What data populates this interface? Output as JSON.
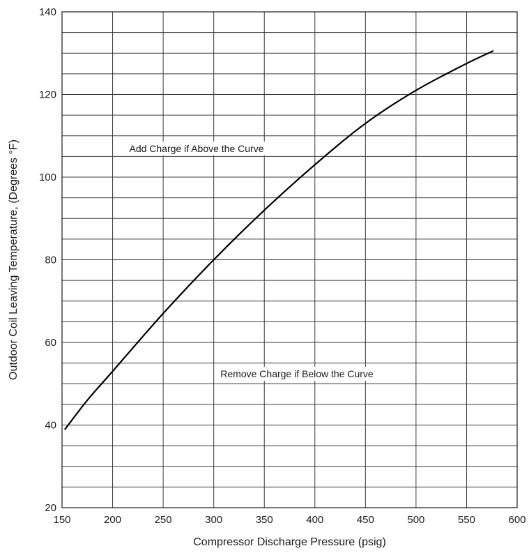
{
  "chart_data": {
    "type": "line",
    "title": "",
    "xlabel": "Compressor Discharge Pressure (psig)",
    "ylabel": "Outdoor Coil Leaving Temperature, (Degrees °F)",
    "xlim": [
      150,
      600
    ],
    "ylim": [
      20,
      140
    ],
    "x_ticks": [
      150,
      200,
      250,
      300,
      350,
      400,
      450,
      500,
      550,
      600
    ],
    "y_ticks": [
      20,
      40,
      60,
      80,
      100,
      120,
      140
    ],
    "x_tick_labels": [
      "150",
      "200",
      "250",
      "300",
      "350",
      "400",
      "450",
      "500",
      "550",
      "600"
    ],
    "y_tick_labels": [
      "20",
      "40",
      "60",
      "80",
      "100",
      "120",
      "140"
    ],
    "x_minor_gridlines": [
      150,
      200,
      250,
      300,
      350,
      400,
      450,
      500,
      550,
      600
    ],
    "y_minor_gridlines": [
      20,
      25,
      30,
      35,
      40,
      45,
      50,
      55,
      60,
      65,
      70,
      75,
      80,
      85,
      90,
      95,
      100,
      105,
      110,
      115,
      120,
      125,
      130,
      135,
      140
    ],
    "grid": true,
    "series": [
      {
        "x": [
          153,
          175,
          200,
          250,
          300,
          350,
          400,
          450,
          500,
          550,
          576
        ],
        "y": [
          39,
          46,
          53,
          67,
          80,
          92,
          103,
          113,
          121,
          127.5,
          130.5
        ]
      }
    ],
    "annotations": [
      {
        "text": "Add Charge if Above the Curve"
      },
      {
        "text": "Remove Charge if Below the Curve"
      }
    ]
  }
}
